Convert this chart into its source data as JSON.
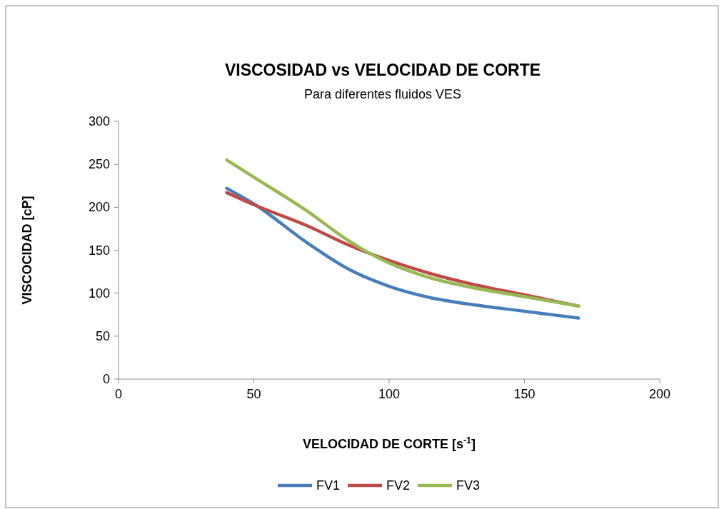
{
  "chart_data": {
    "type": "line",
    "title": "VISCOSIDAD vs VELOCIDAD DE CORTE",
    "subtitle": "Para diferentes fluidos VES",
    "xlabel": "VELOCIDAD DE CORTE [s$^{-1}$]",
    "ylabel": "VISCOCIDAD [cP]",
    "x": [
      40,
      50,
      70,
      85,
      100,
      115,
      130,
      150,
      170
    ],
    "series": [
      {
        "name": "FV1",
        "color": "#4a7ebb",
        "values": [
          222,
          204,
          158,
          128,
          108,
          95,
          87,
          79,
          71
        ]
      },
      {
        "name": "FV2",
        "color": "#be4b48",
        "values": [
          217,
          203,
          178,
          156,
          138,
          123,
          111,
          98,
          85
        ]
      },
      {
        "name": "FV3",
        "color": "#98b954",
        "values": [
          255,
          235,
          195,
          161,
          135,
          118,
          107,
          96,
          85
        ]
      }
    ],
    "xlim": [
      0,
      200
    ],
    "xticks": [
      0,
      50,
      100,
      150,
      200
    ],
    "ylim": [
      0,
      300
    ],
    "yticks": [
      0,
      50,
      100,
      150,
      200,
      250,
      300
    ],
    "grid": false,
    "legend": "bottom",
    "marker": "none",
    "line_style": "solid"
  }
}
